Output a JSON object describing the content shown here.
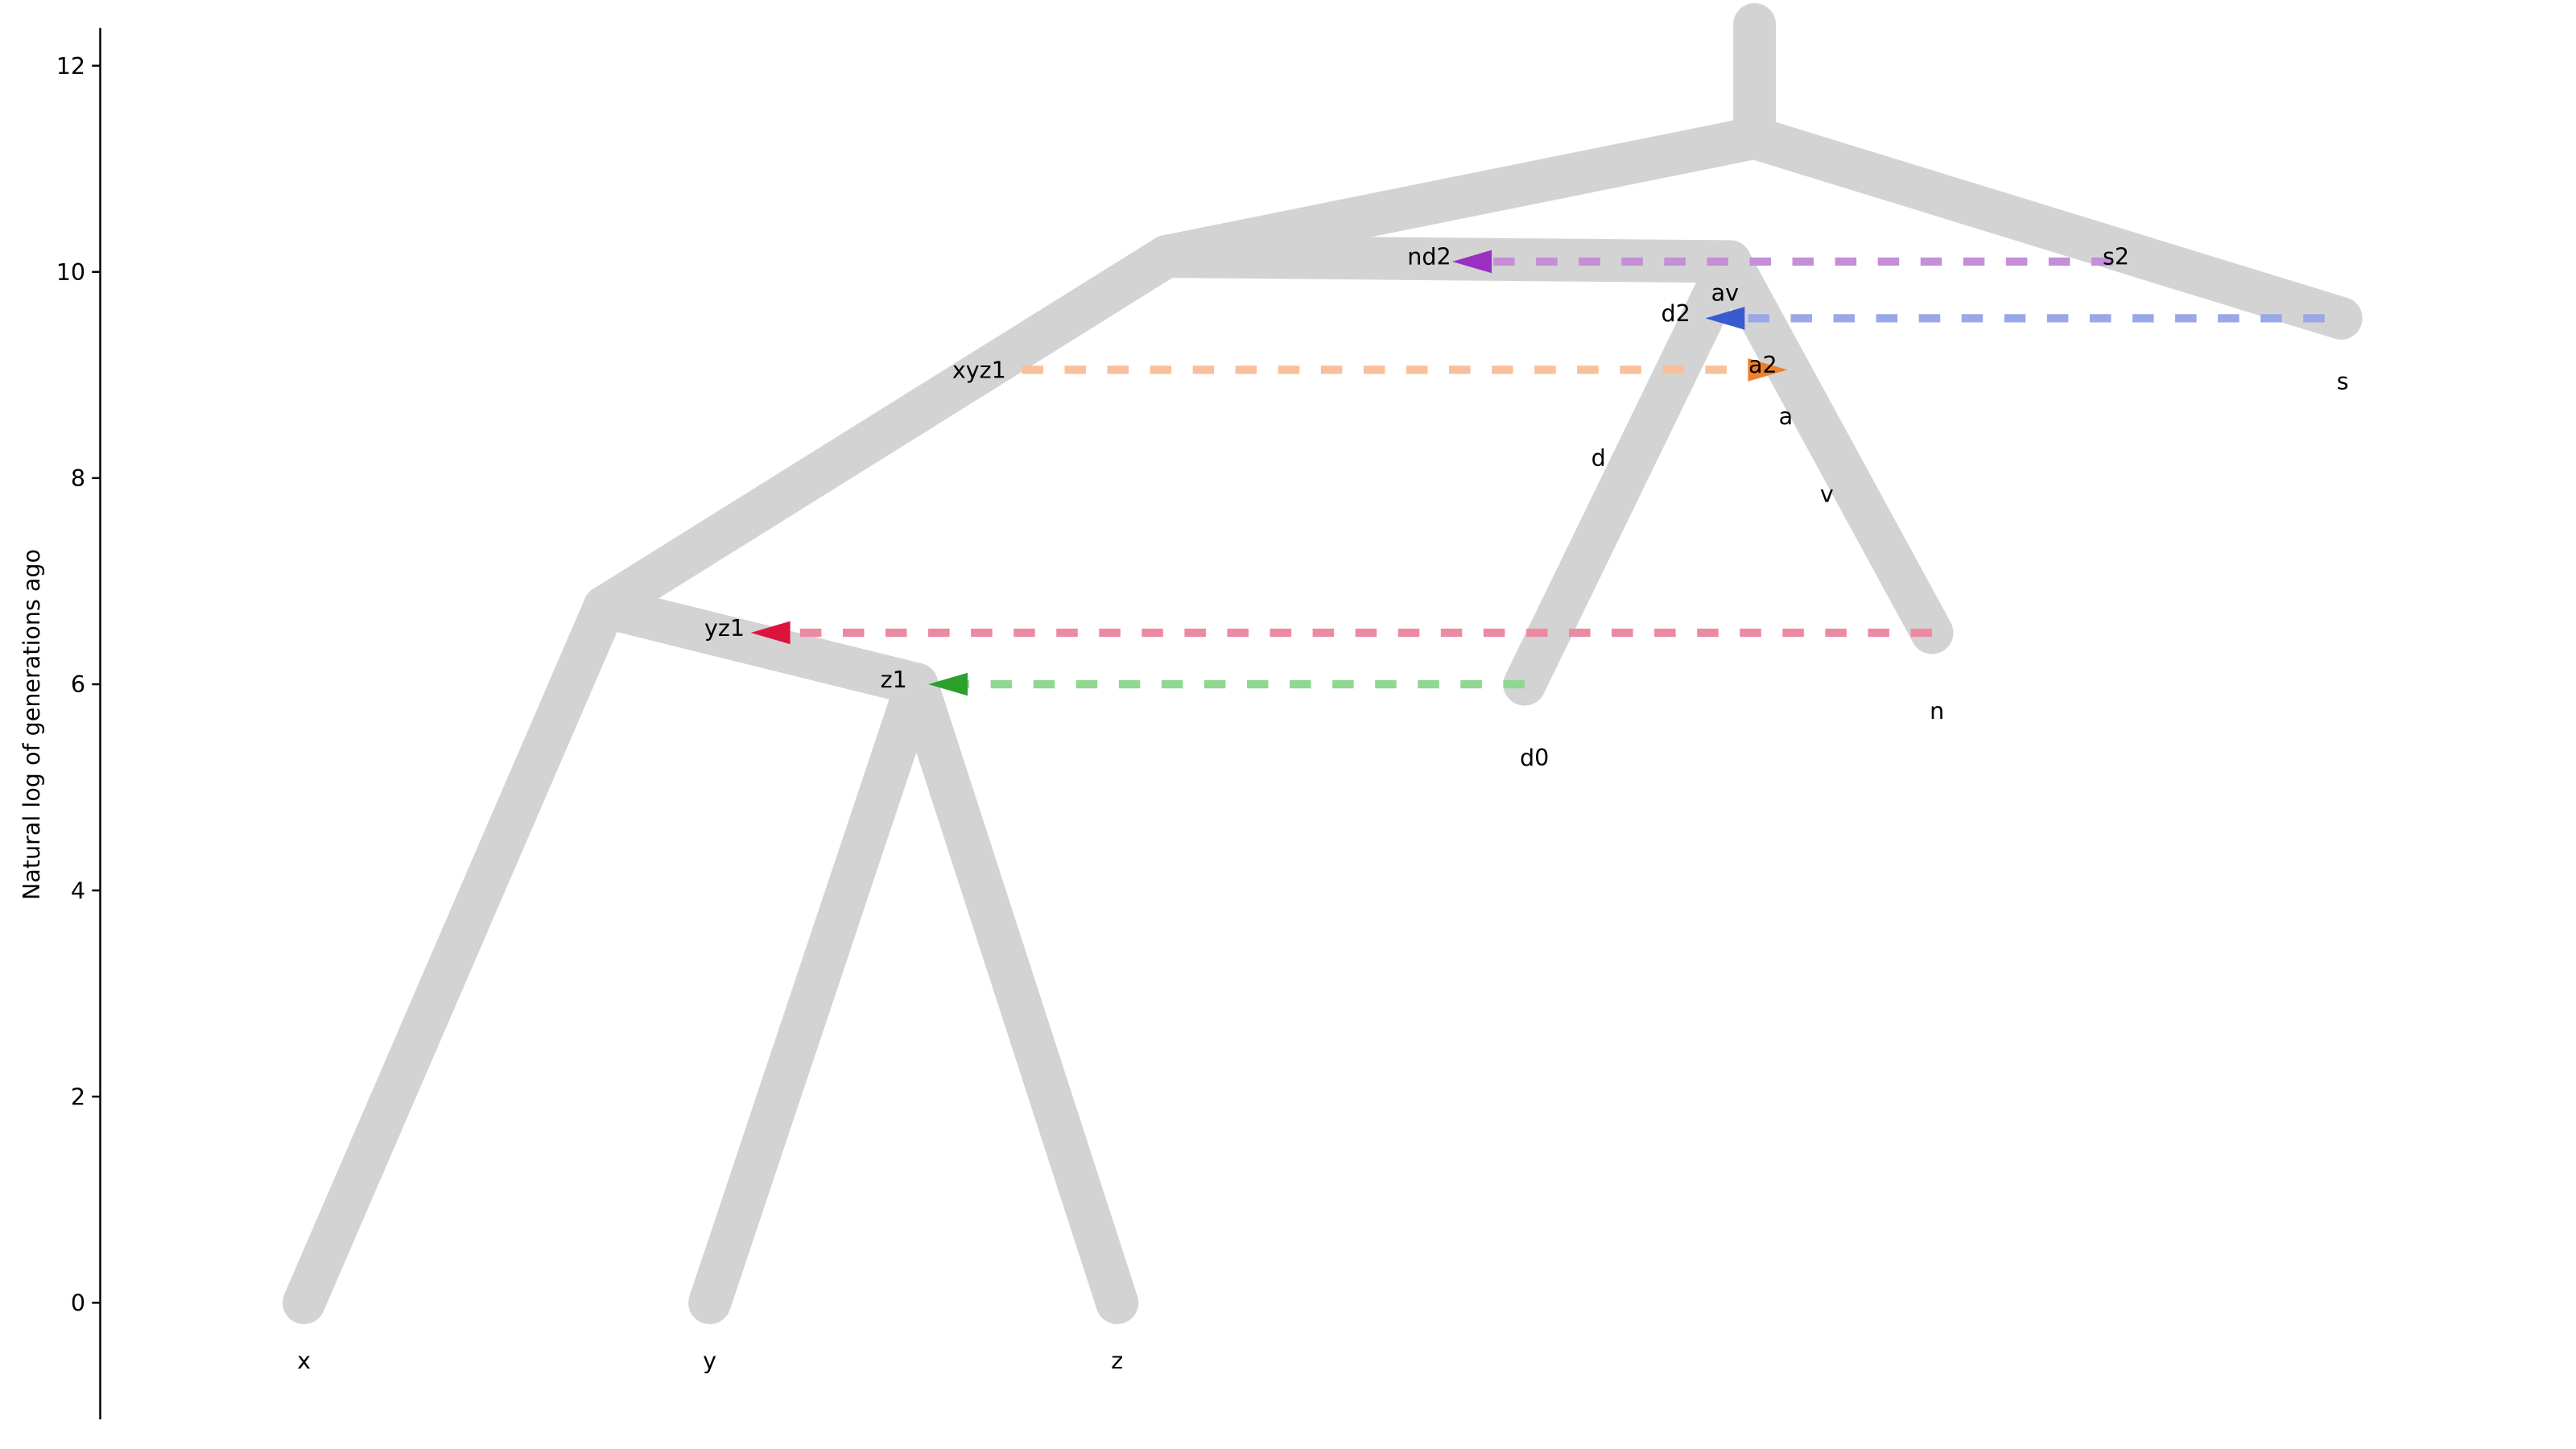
{
  "chart_data": {
    "type": "tree",
    "ylabel": "Natural log of generations ago",
    "ylim": [
      -1.1,
      12.4
    ],
    "yticks": [
      0,
      2,
      4,
      6,
      8,
      10,
      12
    ],
    "branch_color": "#d3d3d3",
    "branches": [
      {
        "from": [
          185,
          0
        ],
        "to": [
          368,
          6.75
        ]
      },
      {
        "from": [
          432,
          0
        ],
        "to": [
          558,
          6.0
        ]
      },
      {
        "from": [
          680,
          0
        ],
        "to": [
          558,
          6.0
        ]
      },
      {
        "from": [
          558,
          6.0
        ],
        "to": [
          368,
          6.75
        ]
      },
      {
        "from": [
          368,
          6.75
        ],
        "to": [
          710,
          10.15
        ]
      },
      {
        "from": [
          928,
          6.0
        ],
        "to": [
          1053,
          10.1
        ]
      },
      {
        "from": [
          1176,
          6.5
        ],
        "to": [
          1053,
          10.1
        ]
      },
      {
        "from": [
          710,
          10.15
        ],
        "to": [
          1053,
          10.1
        ]
      },
      {
        "from": [
          710,
          10.15
        ],
        "to": [
          1068,
          11.3
        ]
      },
      {
        "from": [
          1425,
          9.55
        ],
        "to": [
          1068,
          11.3
        ]
      },
      {
        "from": [
          1068,
          11.3
        ],
        "to": [
          1068,
          12.4
        ]
      }
    ],
    "leaves": [
      {
        "label": "x",
        "x": 185,
        "y": 0
      },
      {
        "label": "y",
        "x": 432,
        "y": 0
      },
      {
        "label": "z",
        "x": 680,
        "y": 0
      },
      {
        "label": "d0",
        "x": 934,
        "y": 5.85
      },
      {
        "label": "n",
        "x": 1179,
        "y": 6.3
      },
      {
        "label": "s",
        "x": 1426,
        "y": 9.5
      }
    ],
    "node_labels": [
      {
        "label": "z1",
        "x": 544,
        "y": 6.05
      },
      {
        "label": "yz1",
        "x": 441,
        "y": 6.55
      },
      {
        "label": "xyz1",
        "x": 596,
        "y": 9.05
      },
      {
        "label": "nd2",
        "x": 870,
        "y": 10.15
      },
      {
        "label": "s2",
        "x": 1288,
        "y": 10.15
      },
      {
        "label": "d2",
        "x": 1020,
        "y": 9.6
      },
      {
        "label": "av",
        "x": 1050,
        "y": 9.8
      },
      {
        "label": "a2",
        "x": 1073,
        "y": 9.1
      },
      {
        "label": "a",
        "x": 1087,
        "y": 8.6
      },
      {
        "label": "d",
        "x": 973,
        "y": 8.2
      },
      {
        "label": "v",
        "x": 1112,
        "y": 7.85
      }
    ],
    "migrations": [
      {
        "name": "d0-to-z1",
        "from_x": 928,
        "to_x": 565,
        "y": 6.0,
        "color": "#2ca02c",
        "line_color": "#90d890"
      },
      {
        "name": "n-to-yz1",
        "from_x": 1176,
        "to_x": 457,
        "y": 6.5,
        "color": "#dc143c",
        "line_color": "#ec8aa2"
      },
      {
        "name": "xyz1-to-a2",
        "from_x": 622,
        "to_x": 1088,
        "y": 9.05,
        "color": "#f07f2a",
        "line_color": "#f7c09a"
      },
      {
        "name": "s-to-d2",
        "from_x": 1415,
        "to_x": 1038,
        "y": 9.55,
        "color": "#3a5ad0",
        "line_color": "#9aa8e8"
      },
      {
        "name": "s2-to-nd2",
        "from_x": 1286,
        "to_x": 884,
        "y": 10.1,
        "color": "#9a2fc2",
        "line_color": "#c48ed8"
      }
    ]
  }
}
